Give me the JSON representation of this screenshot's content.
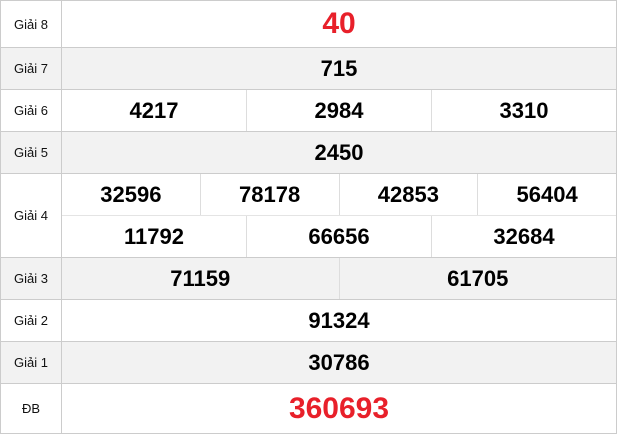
{
  "colors": {
    "highlight": "#e8202a",
    "alt_row": "#f2f2f2"
  },
  "rows": [
    {
      "label": "Giải 8",
      "numbers": [
        [
          "40"
        ]
      ]
    },
    {
      "label": "Giải 7",
      "numbers": [
        [
          "715"
        ]
      ]
    },
    {
      "label": "Giải 6",
      "numbers": [
        [
          "4217",
          "2984",
          "3310"
        ]
      ]
    },
    {
      "label": "Giải 5",
      "numbers": [
        [
          "2450"
        ]
      ]
    },
    {
      "label": "Giải 4",
      "numbers": [
        [
          "32596",
          "78178",
          "42853",
          "56404"
        ],
        [
          "11792",
          "66656",
          "32684"
        ]
      ]
    },
    {
      "label": "Giải 3",
      "numbers": [
        [
          "71159",
          "61705"
        ]
      ]
    },
    {
      "label": "Giải 2",
      "numbers": [
        [
          "91324"
        ]
      ]
    },
    {
      "label": "Giải 1",
      "numbers": [
        [
          "30786"
        ]
      ]
    },
    {
      "label": "ĐB",
      "numbers": [
        [
          "360693"
        ]
      ]
    }
  ]
}
